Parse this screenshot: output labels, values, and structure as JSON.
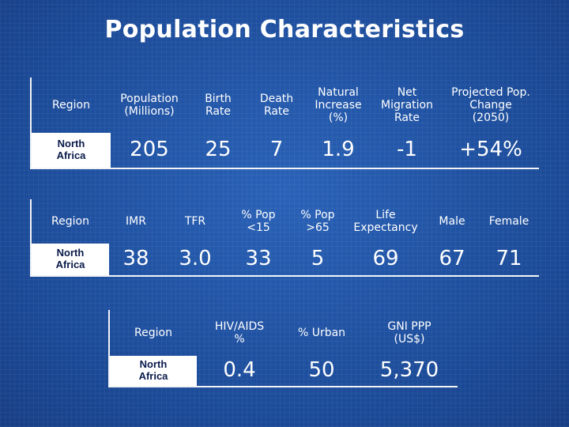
{
  "title": "Population Characteristics",
  "table1": {
    "headers": [
      "Region",
      "Population\n(Millions)",
      "Birth\nRate",
      "Death\nRate",
      "Natural\nIncrease\n(%)",
      "Net\nMigration\nRate",
      "Projected Pop.\nChange\n(2050)"
    ],
    "row": [
      "North\nAfrica",
      "205",
      "25",
      "7",
      "1.9",
      "-1",
      "+54%"
    ]
  },
  "table2": {
    "headers": [
      "Region",
      "IMR",
      "TFR",
      "% Pop\n<15",
      "% Pop\n>65",
      "Life\nExpectancy",
      "Male",
      "Female"
    ],
    "row": [
      "North\nAfrica",
      "38",
      "3.0",
      "33",
      "5",
      "69",
      "67",
      "71"
    ]
  },
  "table3": {
    "headers": [
      "Region",
      "HIV/AIDS\n%",
      "% Urban",
      "GNI PPP\n(US$)"
    ],
    "row": [
      "North\nAfrica",
      "0.4",
      "50",
      "5,370"
    ]
  },
  "colors": {
    "background": "#1f4f9c",
    "text": "#ffffff",
    "region_cell_bg": "#ffffff",
    "region_cell_text": "#0a1a4a"
  }
}
